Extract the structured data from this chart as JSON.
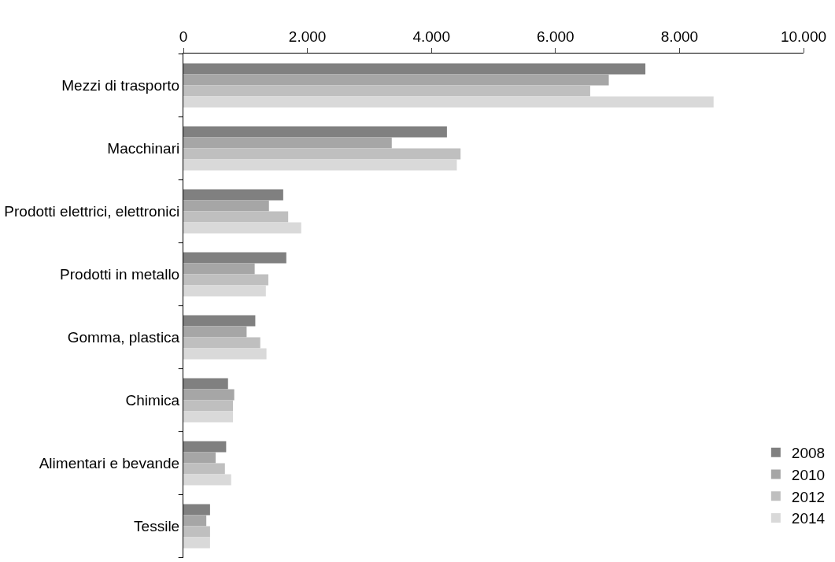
{
  "chart_data": {
    "type": "bar",
    "orientation": "horizontal",
    "categories": [
      "Mezzi di trasporto",
      "Macchinari",
      "Prodotti elettrici, elettronici",
      "Prodotti in metallo",
      "Gomma, plastica",
      "Chimica",
      "Alimentari e bevande",
      "Tessile"
    ],
    "series": [
      {
        "name": "2008",
        "color": "#808080",
        "values": [
          7450,
          4250,
          1610,
          1660,
          1160,
          720,
          690,
          430
        ]
      },
      {
        "name": "2010",
        "color": "#a6a6a6",
        "values": [
          6860,
          3360,
          1380,
          1150,
          1020,
          820,
          520,
          370
        ]
      },
      {
        "name": "2012",
        "color": "#bfbfbf",
        "values": [
          6560,
          4470,
          1690,
          1370,
          1240,
          800,
          670,
          430
        ]
      },
      {
        "name": "2014",
        "color": "#d9d9d9",
        "values": [
          8550,
          4410,
          1900,
          1330,
          1340,
          800,
          770,
          430
        ]
      }
    ],
    "xlim": [
      0,
      10000
    ],
    "xticks": [
      {
        "value": 0,
        "label": "0"
      },
      {
        "value": 2000,
        "label": "2.000"
      },
      {
        "value": 4000,
        "label": "4.000"
      },
      {
        "value": 6000,
        "label": "6.000"
      },
      {
        "value": 8000,
        "label": "8.000"
      },
      {
        "value": 10000,
        "label": "10.000"
      }
    ],
    "grid": false,
    "legend": "bottom right"
  }
}
